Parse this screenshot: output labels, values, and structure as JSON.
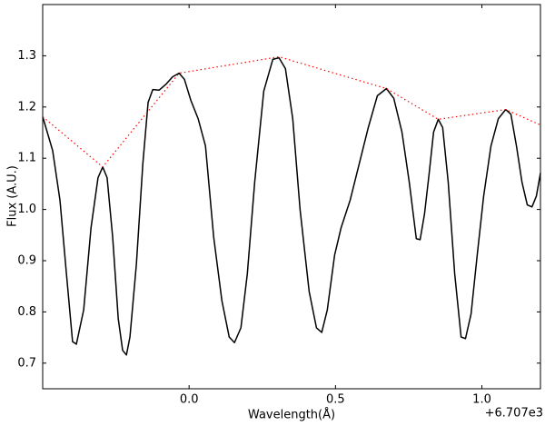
{
  "chart_data": {
    "type": "line",
    "xlabel": "Wavelength(Å)",
    "ylabel": "Flux (A.U.)",
    "x_offset_label": "+6.707e3",
    "xlim": [
      -0.5,
      1.2
    ],
    "ylim": [
      0.65,
      1.4
    ],
    "xticks": [
      {
        "value": 0,
        "label": "0.0"
      },
      0.5,
      {
        "value": 1,
        "label": "1.0"
      }
    ],
    "yticks": [
      0.7,
      0.8,
      0.9,
      {
        "value": 1,
        "label": "1.0"
      },
      1.1,
      1.2,
      1.3
    ],
    "grid": false,
    "series": [
      {
        "color": "#000000",
        "linestyle": "solid",
        "x": [
          -0.5,
          -0.466,
          -0.441,
          -0.419,
          -0.398,
          -0.385,
          -0.36,
          -0.335,
          -0.311,
          -0.295,
          -0.28,
          -0.261,
          -0.242,
          -0.227,
          -0.214,
          -0.202,
          -0.18,
          -0.158,
          -0.14,
          -0.124,
          -0.102,
          -0.078,
          -0.056,
          -0.034,
          -0.016,
          0.006,
          0.031,
          0.056,
          0.084,
          0.112,
          0.137,
          0.155,
          0.177,
          0.199,
          0.224,
          0.255,
          0.286,
          0.307,
          0.329,
          0.354,
          0.379,
          0.41,
          0.435,
          0.453,
          0.472,
          0.497,
          0.519,
          0.55,
          0.581,
          0.612,
          0.643,
          0.674,
          0.699,
          0.727,
          0.752,
          0.776,
          0.789,
          0.804,
          0.82,
          0.835,
          0.851,
          0.866,
          0.885,
          0.907,
          0.929,
          0.944,
          0.963,
          0.984,
          1.006,
          1.031,
          1.056,
          1.081,
          1.099,
          1.118,
          1.137,
          1.155,
          1.171,
          1.186,
          1.2
        ],
        "values": [
          1.181,
          1.115,
          1.018,
          0.875,
          0.742,
          0.737,
          0.804,
          0.964,
          1.062,
          1.083,
          1.062,
          0.946,
          0.787,
          0.725,
          0.716,
          0.751,
          0.893,
          1.089,
          1.209,
          1.234,
          1.233,
          1.245,
          1.259,
          1.266,
          1.254,
          1.213,
          1.177,
          1.124,
          0.946,
          0.822,
          0.751,
          0.74,
          0.769,
          0.875,
          1.053,
          1.231,
          1.293,
          1.296,
          1.275,
          1.177,
          1.0,
          0.84,
          0.769,
          0.76,
          0.804,
          0.911,
          0.964,
          1.018,
          1.089,
          1.16,
          1.222,
          1.236,
          1.217,
          1.151,
          1.053,
          0.943,
          0.941,
          0.991,
          1.071,
          1.151,
          1.176,
          1.16,
          1.053,
          0.875,
          0.751,
          0.748,
          0.796,
          0.911,
          1.026,
          1.124,
          1.177,
          1.195,
          1.186,
          1.124,
          1.053,
          1.009,
          1.005,
          1.026,
          1.071
        ]
      },
      {
        "color": "#ff0000",
        "linestyle": "dotted",
        "x": [
          -0.5,
          -0.295,
          -0.034,
          0.307,
          0.674,
          0.851,
          1.081,
          1.2
        ],
        "values": [
          1.181,
          1.083,
          1.266,
          1.298,
          1.236,
          1.176,
          1.195,
          1.165
        ]
      }
    ]
  }
}
